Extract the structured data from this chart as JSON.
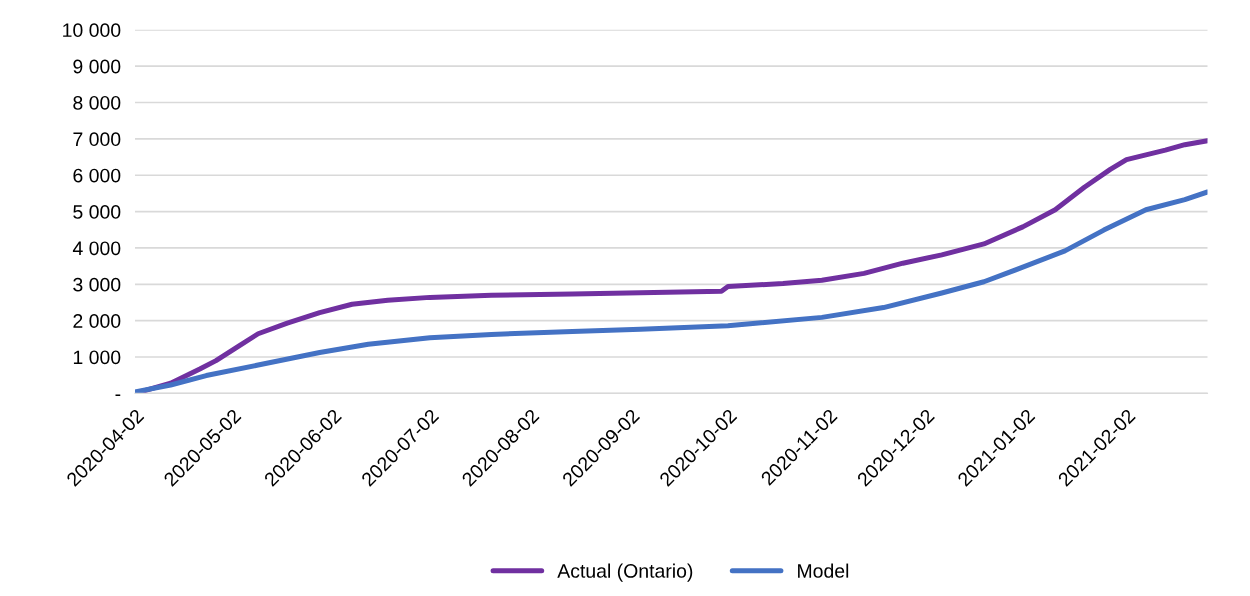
{
  "chart_data": {
    "type": "line",
    "legend": "bottom",
    "grid": "y",
    "line_style": "solid",
    "marker": "none",
    "xlim": [
      "2020-04-02",
      "2021-02-27"
    ],
    "xticks": [
      "2020-04-02",
      "2020-05-02",
      "2020-06-02",
      "2020-07-02",
      "2020-08-02",
      "2020-09-02",
      "2020-10-02",
      "2020-11-02",
      "2020-12-02",
      "2021-01-02",
      "2021-02-02"
    ],
    "ylim": [
      0,
      10000
    ],
    "yticks": [
      {
        "value": 0,
        "label": "-"
      },
      {
        "value": 1000,
        "label": "1 000"
      },
      {
        "value": 2000,
        "label": "2 000"
      },
      {
        "value": 3000,
        "label": "3 000"
      },
      {
        "value": 4000,
        "label": "4 000"
      },
      {
        "value": 5000,
        "label": "5 000"
      },
      {
        "value": 6000,
        "label": "6 000"
      },
      {
        "value": 7000,
        "label": "7 000"
      },
      {
        "value": 8000,
        "label": "8 000"
      },
      {
        "value": 9000,
        "label": "9 000"
      },
      {
        "value": 10000,
        "label": "10 000"
      }
    ],
    "series": [
      {
        "name": "Actual (Ontario)",
        "color": "#7030a0",
        "x": [
          "2020-04-02",
          "2020-04-13",
          "2020-04-22",
          "2020-04-27",
          "2020-05-04",
          "2020-05-10",
          "2020-05-19",
          "2020-05-29",
          "2020-06-08",
          "2020-06-19",
          "2020-07-02",
          "2020-07-21",
          "2020-08-15",
          "2020-09-05",
          "2020-09-30",
          "2020-10-02",
          "2020-10-19",
          "2020-10-31",
          "2020-11-13",
          "2020-11-25",
          "2020-12-07",
          "2020-12-20",
          "2021-01-01",
          "2021-01-11",
          "2021-01-20",
          "2021-01-28",
          "2021-02-02",
          "2021-02-14",
          "2021-02-20",
          "2021-02-27"
        ],
        "values": [
          0,
          280,
          670,
          900,
          1300,
          1640,
          1930,
          2220,
          2450,
          2560,
          2640,
          2700,
          2730,
          2770,
          2810,
          2940,
          3020,
          3110,
          3300,
          3580,
          3810,
          4110,
          4580,
          5050,
          5670,
          6160,
          6430,
          6690,
          6840,
          6950
        ]
      },
      {
        "name": "Model",
        "color": "#4472c4",
        "x": [
          "2020-04-02",
          "2020-04-13",
          "2020-04-24",
          "2020-05-10",
          "2020-05-29",
          "2020-06-13",
          "2020-07-02",
          "2020-07-21",
          "2020-08-15",
          "2020-09-05",
          "2020-10-02",
          "2020-10-31",
          "2020-11-19",
          "2020-12-07",
          "2020-12-20",
          "2021-01-01",
          "2021-01-14",
          "2021-01-26",
          "2021-02-08",
          "2021-02-20",
          "2021-02-27"
        ],
        "values": [
          40,
          230,
          490,
          780,
          1125,
          1350,
          1530,
          1620,
          1700,
          1760,
          1860,
          2090,
          2360,
          2760,
          3070,
          3470,
          3920,
          4490,
          5050,
          5330,
          5540
        ]
      }
    ]
  }
}
